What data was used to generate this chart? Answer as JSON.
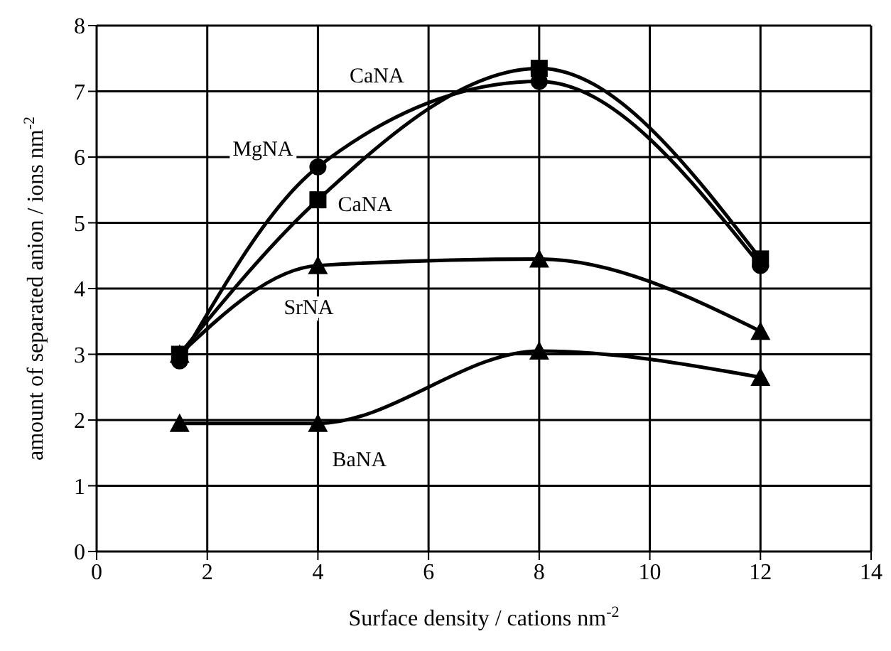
{
  "chart_data": {
    "type": "line",
    "xlabel": "Surface density / cations nm$^{-2}$",
    "ylabel": "amount of separated anion / ions nm$^{-2}$",
    "x": [
      1.5,
      4,
      8,
      12
    ],
    "series": [
      {
        "name": "MgNA",
        "color": "#000000",
        "marker": "circle",
        "values": [
          2.9,
          5.85,
          7.15,
          4.35
        ]
      },
      {
        "name": "CaNA",
        "color": "#000000",
        "marker": "square",
        "values": [
          3.0,
          5.35,
          7.35,
          4.45
        ]
      },
      {
        "name": "SrNA",
        "color": "#000000",
        "marker": "triangle",
        "values": [
          3.0,
          4.35,
          4.45,
          3.35
        ]
      },
      {
        "name": "BaNA",
        "color": "#000000",
        "marker": "triangle",
        "values": [
          1.95,
          1.95,
          3.05,
          2.65
        ]
      }
    ],
    "annotations": [
      "CaNA"
    ],
    "xlim": [
      0,
      14
    ],
    "xticks": [
      0,
      2,
      4,
      6,
      8,
      10,
      12,
      14
    ],
    "ylim": [
      0,
      8
    ],
    "yticks": [
      0,
      1,
      2,
      3,
      4,
      5,
      6,
      7,
      8
    ],
    "grid": true,
    "legend": false
  }
}
